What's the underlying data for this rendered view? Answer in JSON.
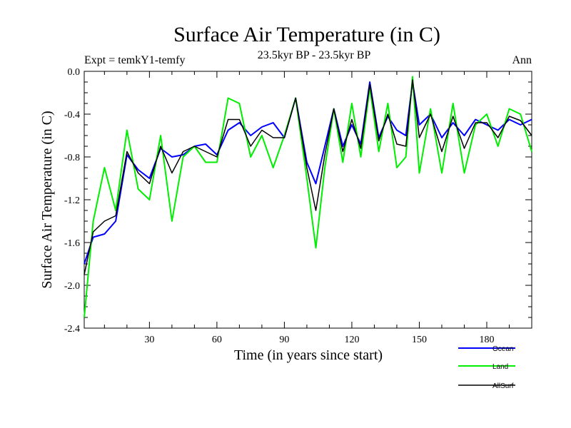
{
  "figure": {
    "title": "Surface Air Temperature (in C)",
    "left_label": "Expt = temkY1-temfy",
    "center_label": "23.5kyr BP - 23.5kyr BP",
    "right_label": "Ann"
  },
  "chart_data": {
    "type": "line",
    "title": "Surface Air Temperature (in C)",
    "xlabel": "Time (in years since start)",
    "ylabel": "Surface Air Temperature (in C)",
    "xlim": [
      1,
      200
    ],
    "ylim": [
      -2.4,
      0.0
    ],
    "x_ticks": [
      30,
      60,
      90,
      120,
      150,
      180
    ],
    "x_tick_labels": [
      "30",
      "60",
      "90",
      "120",
      "150",
      "180"
    ],
    "y_ticks": [
      0.0,
      -0.4,
      -0.8,
      -1.2,
      -1.6,
      -2.0,
      -2.4
    ],
    "y_tick_labels": [
      "0.0",
      "-0.4",
      "-0.8",
      "-1.2",
      "-1.6",
      "-2.0",
      "-2.4"
    ],
    "grid": false,
    "legend_position": "bottom-right outside",
    "x": [
      1,
      5,
      10,
      15,
      20,
      25,
      30,
      35,
      40,
      45,
      50,
      55,
      60,
      65,
      70,
      75,
      80,
      85,
      90,
      95,
      100,
      104,
      108,
      112,
      116,
      120,
      124,
      128,
      132,
      136,
      140,
      144,
      147,
      150,
      155,
      160,
      165,
      170,
      175,
      180,
      185,
      190,
      195,
      200
    ],
    "series": [
      {
        "name": "Ocean",
        "color": "#0000ff",
        "values": [
          -1.8,
          -1.55,
          -1.52,
          -1.4,
          -0.78,
          -0.92,
          -1.0,
          -0.72,
          -0.8,
          -0.78,
          -0.7,
          -0.68,
          -0.78,
          -0.55,
          -0.48,
          -0.6,
          -0.52,
          -0.48,
          -0.62,
          -0.25,
          -0.85,
          -1.05,
          -0.7,
          -0.35,
          -0.7,
          -0.5,
          -0.68,
          -0.1,
          -0.62,
          -0.42,
          -0.55,
          -0.6,
          -0.1,
          -0.5,
          -0.4,
          -0.62,
          -0.48,
          -0.6,
          -0.45,
          -0.5,
          -0.55,
          -0.45,
          -0.5,
          -0.45
        ],
        "line_width": 2
      },
      {
        "name": "Land",
        "color": "#00ee00",
        "values": [
          -2.3,
          -1.4,
          -0.9,
          -1.3,
          -0.55,
          -1.1,
          -1.2,
          -0.6,
          -1.4,
          -0.8,
          -0.7,
          -0.85,
          -0.85,
          -0.25,
          -0.3,
          -0.8,
          -0.6,
          -0.9,
          -0.6,
          -0.25,
          -1.0,
          -1.65,
          -0.9,
          -0.35,
          -0.85,
          -0.3,
          -0.8,
          -0.15,
          -0.75,
          -0.3,
          -0.9,
          -0.8,
          -0.05,
          -0.95,
          -0.35,
          -0.95,
          -0.3,
          -0.95,
          -0.5,
          -0.4,
          -0.7,
          -0.35,
          -0.4,
          -0.75
        ],
        "line_width": 2
      },
      {
        "name": "AllSurf",
        "color": "#000000",
        "values": [
          -1.9,
          -1.5,
          -1.4,
          -1.35,
          -0.75,
          -0.95,
          -1.05,
          -0.7,
          -0.95,
          -0.75,
          -0.7,
          -0.75,
          -0.8,
          -0.45,
          -0.45,
          -0.7,
          -0.55,
          -0.62,
          -0.62,
          -0.25,
          -0.9,
          -1.3,
          -0.78,
          -0.35,
          -0.75,
          -0.45,
          -0.72,
          -0.12,
          -0.65,
          -0.4,
          -0.68,
          -0.7,
          -0.08,
          -0.62,
          -0.4,
          -0.75,
          -0.42,
          -0.72,
          -0.48,
          -0.48,
          -0.62,
          -0.42,
          -0.46,
          -0.6
        ],
        "line_width": 1.5
      }
    ]
  }
}
